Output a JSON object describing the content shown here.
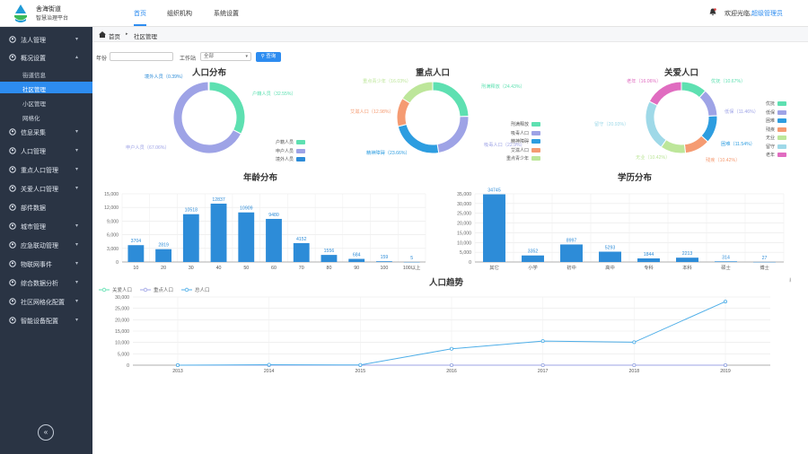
{
  "app": {
    "title_line1": "舍海街道",
    "title_line2": "智慧治理平台",
    "welcome": "欢迎光临,",
    "user": "超级管理员",
    "nav": [
      {
        "label": "首页",
        "active": true
      },
      {
        "label": "组织机构",
        "active": false
      },
      {
        "label": "系统设置",
        "active": false
      }
    ]
  },
  "sidebar": {
    "items": [
      {
        "label": "法人管理",
        "icon": "person-icon",
        "chevron": "▾"
      },
      {
        "label": "概况设置",
        "icon": "location-icon",
        "chevron": "▴"
      },
      {
        "label": "信息采集",
        "icon": "info-icon",
        "chevron": "▾"
      },
      {
        "label": "人口管理",
        "icon": "person-icon",
        "chevron": "▾"
      },
      {
        "label": "重点人口管理",
        "icon": "people-icon",
        "chevron": "▾"
      },
      {
        "label": "关爱人口管理",
        "icon": "people-icon",
        "chevron": "▾"
      },
      {
        "label": "部件数据",
        "icon": "table-icon",
        "chevron": ""
      },
      {
        "label": "城市管理",
        "icon": "building-icon",
        "chevron": "▾"
      },
      {
        "label": "应急联动管理",
        "icon": "alert-icon",
        "chevron": "▾"
      },
      {
        "label": "物联网事件",
        "icon": "device-icon",
        "chevron": "▾"
      },
      {
        "label": "综合数据分析",
        "icon": "analysis-icon",
        "chevron": "▾"
      },
      {
        "label": "社区网格化配置",
        "icon": "grid-icon",
        "chevron": "▾"
      },
      {
        "label": "智能设备配置",
        "icon": "device-icon",
        "chevron": "▾"
      }
    ],
    "subitems": [
      {
        "label": "街道信息",
        "active": false
      },
      {
        "label": "社区管理",
        "active": true
      },
      {
        "label": "小区管理",
        "active": false
      },
      {
        "label": "网格化",
        "active": false
      }
    ],
    "collapse": "«"
  },
  "breadcrumb": {
    "home": "首页",
    "sep": "▸",
    "current": "社区管理"
  },
  "filters": {
    "year_label": "年份",
    "year_value": "",
    "workstation_label": "工作站",
    "workstation_value": "全部",
    "query_label": "查询"
  },
  "chart_data": [
    {
      "type": "pie",
      "title": "人口分布",
      "slices": [
        {
          "name": "户籍人员",
          "value": 32.55,
          "label": "户籍人员（32.55%）",
          "color": "#5ee0b1"
        },
        {
          "name": "申户人员",
          "value": 67.06,
          "label": "申户人员（67.06%）",
          "color": "#9ea3e6"
        },
        {
          "name": "境外人员",
          "value": 0.39,
          "label": "境外人员（0.39%）",
          "color": "#2d8cd8"
        }
      ],
      "legend": [
        "户籍人员",
        "申户人员",
        "境外人员"
      ],
      "legend_colors": [
        "#5ee0b1",
        "#9ea3e6",
        "#2d8cd8"
      ]
    },
    {
      "type": "pie",
      "title": "重点人口",
      "slices": [
        {
          "name": "刑满释放",
          "value": 24.43,
          "label": "刑满释放（24.43%）",
          "color": "#5ee0b1"
        },
        {
          "name": "吸毒人口",
          "value": 22.9,
          "label": "吸毒人口（22.9%）",
          "color": "#9ea3e6"
        },
        {
          "name": "精神障碍",
          "value": 23.66,
          "label": "精神障碍（23.66%）",
          "color": "#2d9de0"
        },
        {
          "name": "艾滋人口",
          "value": 12.98,
          "label": "艾滋人口（12.98%）",
          "color": "#f59b72"
        },
        {
          "name": "重点青少年",
          "value": 16.03,
          "label": "重点青少年（16.03%）",
          "color": "#bde69a"
        }
      ],
      "legend": [
        "刑满释放",
        "吸毒人口",
        "精神障碍",
        "艾滋人口",
        "重点青少年"
      ],
      "legend_colors": [
        "#5ee0b1",
        "#9ea3e6",
        "#2d9de0",
        "#f59b72",
        "#bde69a"
      ]
    },
    {
      "type": "pie",
      "title": "关爱人口",
      "slices": [
        {
          "name": "优抚",
          "value": 10.67,
          "label": "优抚（10.67%）",
          "color": "#5ee0b1"
        },
        {
          "name": "低保",
          "value": 11.46,
          "label": "低保（11.46%）",
          "color": "#9ea3e6"
        },
        {
          "name": "困难",
          "value": 11.54,
          "label": "困难（11.54%）",
          "color": "#2d9de0"
        },
        {
          "name": "残疾",
          "value": 10.42,
          "label": "残疾（10.42%）",
          "color": "#f59b72"
        },
        {
          "name": "无业",
          "value": 10.42,
          "label": "无业（10.42%）",
          "color": "#bde69a"
        },
        {
          "name": "留守",
          "value": 20.93,
          "label": "留守（20.93%）",
          "color": "#9fd9e8"
        },
        {
          "name": "老年",
          "value": 16.06,
          "label": "老年（16.06%）",
          "color": "#e06cc0"
        }
      ],
      "legend": [
        "优抚",
        "低保",
        "困难",
        "残疾",
        "无业",
        "留守",
        "老年"
      ],
      "legend_colors": [
        "#5ee0b1",
        "#9ea3e6",
        "#2d9de0",
        "#f59b72",
        "#bde69a",
        "#9fd9e8",
        "#e06cc0"
      ]
    },
    {
      "type": "bar",
      "title": "年龄分布",
      "categories": [
        "10",
        "20",
        "30",
        "40",
        "50",
        "60",
        "70",
        "80",
        "90",
        "100",
        "100以上"
      ],
      "values": [
        3704,
        2819,
        10518,
        12837,
        10909,
        9480,
        4152,
        1556,
        684,
        159,
        5
      ],
      "ylim": [
        0,
        15000
      ],
      "yticks": [
        "0",
        "3,000",
        "6,000",
        "9,000",
        "12,000",
        "15,000"
      ],
      "value_labels": [
        "3704",
        "2819",
        "10518",
        "12837",
        "10909",
        "9480",
        "4152",
        "1556",
        "684",
        "159",
        "5"
      ],
      "color": "#2d8cd8"
    },
    {
      "type": "bar",
      "title": "学历分布",
      "categories": [
        "其它",
        "小学",
        "初中",
        "高中",
        "专科",
        "本科",
        "硕士",
        "博士"
      ],
      "values": [
        34745,
        3352,
        8997,
        5293,
        1844,
        2213,
        314,
        27
      ],
      "ylim": [
        0,
        35000
      ],
      "yticks": [
        "0",
        "5,000",
        "10,000",
        "15,000",
        "20,000",
        "25,000",
        "30,000",
        "35,000"
      ],
      "value_labels": [
        "34745",
        "3352",
        "8997",
        "5293",
        "1844",
        "2213",
        "314",
        "27"
      ],
      "color": "#2d8cd8"
    },
    {
      "type": "line",
      "title": "人口趋势",
      "x": [
        "2013",
        "2014",
        "2015",
        "2016",
        "2017",
        "2018",
        "2019"
      ],
      "ylim": [
        0,
        30000
      ],
      "yticks": [
        "0",
        "5,000",
        "10,000",
        "15,000",
        "20,000",
        "25,000",
        "30,000"
      ],
      "series": [
        {
          "name": "关爱人口",
          "values": [
            0,
            0,
            0,
            0,
            0,
            0,
            0
          ],
          "color": "#5ee0b1"
        },
        {
          "name": "重点人口",
          "values": [
            0,
            0,
            0,
            0,
            0,
            0,
            0
          ],
          "color": "#9ea3e6"
        },
        {
          "name": "总人口",
          "values": [
            0,
            200,
            100,
            7200,
            10600,
            10100,
            28000
          ],
          "color": "#4eaee8"
        }
      ]
    }
  ],
  "download_icon": "⭳"
}
